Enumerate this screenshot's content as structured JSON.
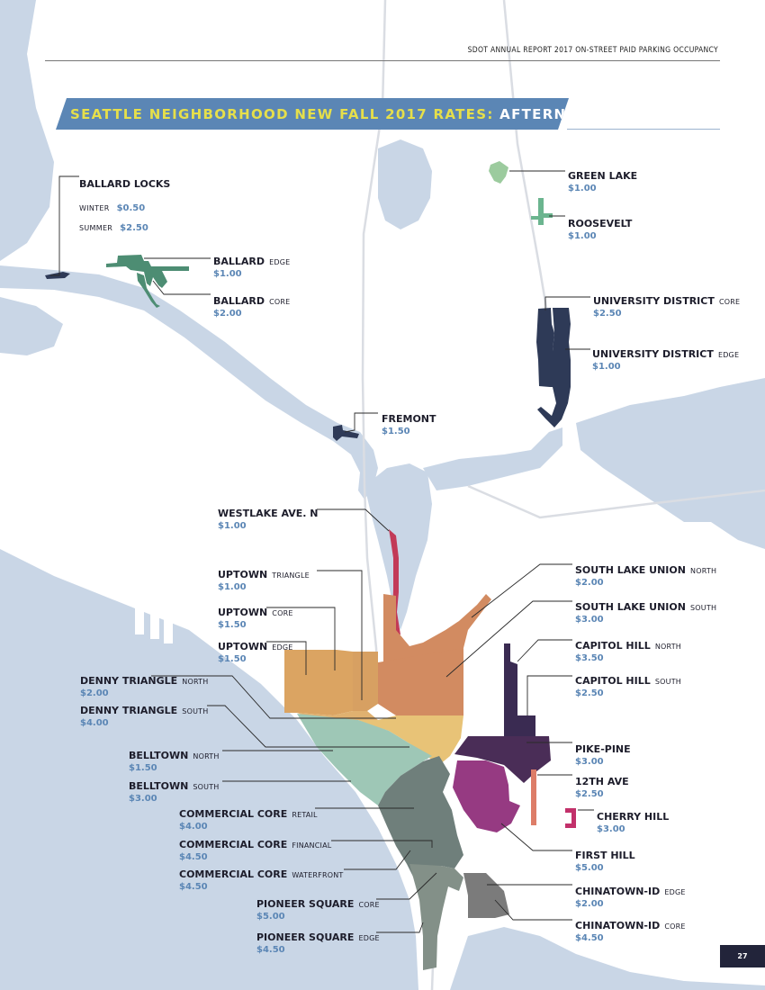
{
  "header": {
    "report_title": "SDOT ANNUAL REPORT 2017 ON-STREET PAID PARKING OCCUPANCY"
  },
  "title": {
    "main": "SEATTLE NEIGHBORHOOD NEW FALL 2017 RATES: ",
    "accent": "AFTERNOON"
  },
  "page_number": "27",
  "colors": {
    "water": "#c9d6e6",
    "land": "#ffffff",
    "title_band": "#5b86b5",
    "title_text": "#e6df4a",
    "price_text": "#5b86b5",
    "navy": "#2e3a57",
    "green_lake": "#9ccb9e",
    "roosevelt": "#6bb58f",
    "ballard": "#4d8d73",
    "westlake": "#c23a57",
    "uptown_triangle": "#d7a062",
    "uptown_core": "#dba462",
    "slu": "#d28b61",
    "denny": "#e8c377",
    "belltown": "#9ec7b6",
    "commercial_core": "#6f7f7b",
    "pioneer_square": "#839088",
    "chinatown": "#7b7b7b",
    "capitol_hill": "#3a2b52",
    "pike_pine": "#4a2d57",
    "first_hill": "#963a82",
    "twelfth_ave": "#dd7d68",
    "cherry_hill": "#c2306a"
  },
  "neighborhoods": {
    "ballard_locks": {
      "name": "BALLARD LOCKS",
      "winter_label": "WINTER",
      "winter_rate": "$0.50",
      "summer_label": "SUMMER",
      "summer_rate": "$2.50"
    },
    "ballard_edge": {
      "name": "BALLARD",
      "suffix": "EDGE",
      "rate": "$1.00"
    },
    "ballard_core": {
      "name": "BALLARD",
      "suffix": "CORE",
      "rate": "$2.00"
    },
    "green_lake": {
      "name": "GREEN LAKE",
      "rate": "$1.00"
    },
    "roosevelt": {
      "name": "ROOSEVELT",
      "rate": "$1.00"
    },
    "university_core": {
      "name": "UNIVERSITY DISTRICT",
      "suffix": "CORE",
      "rate": "$2.50"
    },
    "university_edge": {
      "name": "UNIVERSITY DISTRICT",
      "suffix": "EDGE",
      "rate": "$1.00"
    },
    "fremont": {
      "name": "FREMONT",
      "rate": "$1.50"
    },
    "westlake": {
      "name": "WESTLAKE AVE. N",
      "rate": "$1.00"
    },
    "uptown_triangle": {
      "name": "UPTOWN",
      "suffix": "TRIANGLE",
      "rate": "$1.00"
    },
    "uptown_core": {
      "name": "UPTOWN",
      "suffix": "CORE",
      "rate": "$1.50"
    },
    "uptown_edge": {
      "name": "UPTOWN",
      "suffix": "EDGE",
      "rate": "$1.50"
    },
    "denny_north": {
      "name": "DENNY TRIANGLE",
      "suffix": "NORTH",
      "rate": "$2.00"
    },
    "denny_south": {
      "name": "DENNY TRIANGLE",
      "suffix": "SOUTH",
      "rate": "$4.00"
    },
    "belltown_north": {
      "name": "BELLTOWN",
      "suffix": "NORTH",
      "rate": "$1.50"
    },
    "belltown_south": {
      "name": "BELLTOWN",
      "suffix": "SOUTH",
      "rate": "$3.00"
    },
    "cc_retail": {
      "name": "COMMERCIAL CORE",
      "suffix": "RETAIL",
      "rate": "$4.00"
    },
    "cc_financial": {
      "name": "COMMERCIAL CORE",
      "suffix": "FINANCIAL",
      "rate": "$4.50"
    },
    "cc_waterfront": {
      "name": "COMMERCIAL CORE",
      "suffix": "WATERFRONT",
      "rate": "$4.50"
    },
    "pioneer_core": {
      "name": "PIONEER SQUARE",
      "suffix": "CORE",
      "rate": "$5.00"
    },
    "pioneer_edge": {
      "name": "PIONEER SQUARE",
      "suffix": "EDGE",
      "rate": "$4.50"
    },
    "slu_north": {
      "name": "SOUTH LAKE UNION",
      "suffix": "NORTH",
      "rate": "$2.00"
    },
    "slu_south": {
      "name": "SOUTH LAKE UNION",
      "suffix": "SOUTH",
      "rate": "$3.00"
    },
    "capitol_north": {
      "name": "CAPITOL HILL",
      "suffix": "NORTH",
      "rate": "$3.50"
    },
    "capitol_south": {
      "name": "CAPITOL HILL",
      "suffix": "SOUTH",
      "rate": "$2.50"
    },
    "pike_pine": {
      "name": "PIKE-PINE",
      "rate": "$3.00"
    },
    "twelfth_ave": {
      "name": "12TH AVE",
      "rate": "$2.50"
    },
    "cherry_hill": {
      "name": "CHERRY HILL",
      "rate": "$3.00"
    },
    "first_hill": {
      "name": "FIRST HILL",
      "rate": "$5.00"
    },
    "chinatown_edge": {
      "name": "CHINATOWN-ID",
      "suffix": "EDGE",
      "rate": "$2.00"
    },
    "chinatown_core": {
      "name": "CHINATOWN-ID",
      "suffix": "CORE",
      "rate": "$4.50"
    }
  }
}
